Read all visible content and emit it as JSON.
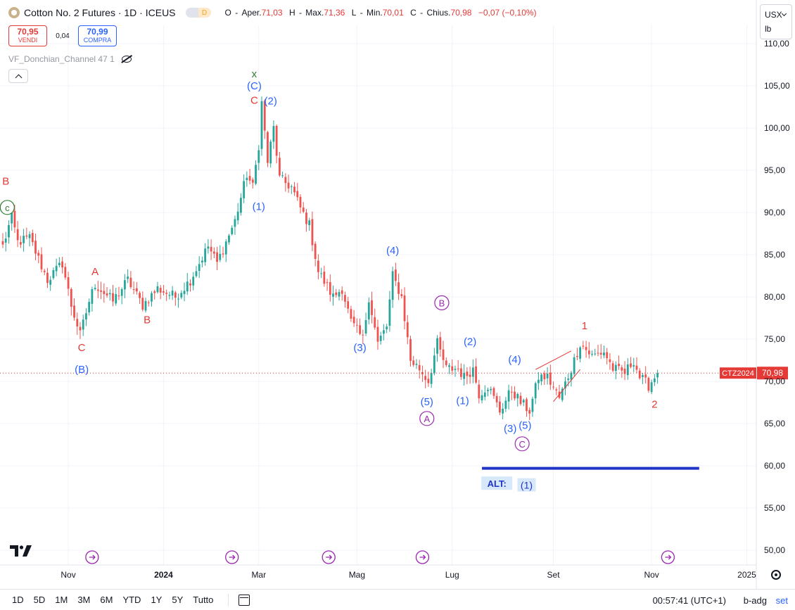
{
  "header": {
    "title": "Cotton No. 2 Futures · 1D · ICEUS",
    "pill_left": "",
    "pill_right": "D",
    "ohlc": [
      {
        "k": "O",
        "label": "Aper.",
        "v": "71,03"
      },
      {
        "k": "H",
        "label": "Max.",
        "v": "71,36"
      },
      {
        "k": "L",
        "label": "Min.",
        "v": "70,01"
      },
      {
        "k": "C",
        "label": "Chius.",
        "v": "70,98"
      }
    ],
    "change": "−0,07 (−0,10%)"
  },
  "trade": {
    "sell_price": "70,95",
    "sell_label": "VENDI",
    "spread": "0,04",
    "buy_price": "70,99",
    "buy_label": "COMPRA"
  },
  "indicator": {
    "name": "VF_Donchian_Channel 47 1"
  },
  "unit": {
    "currency": "USX",
    "unit": "lb"
  },
  "colors": {
    "up": "#26a69a",
    "down": "#ef5350",
    "blue": "#2962ff",
    "red": "#e53935",
    "purple": "#9c27b0",
    "green": "#2e7d32"
  },
  "bottombar": {
    "ranges": [
      "1D",
      "5D",
      "1M",
      "3M",
      "6M",
      "YTD",
      "1Y",
      "5Y",
      "Tutto"
    ],
    "clock": "00:57:41 (UTC+1)",
    "adj": "b-adg",
    "session": "set"
  },
  "chart_data": {
    "type": "candlestick",
    "symbol_tag": "CTZ2024",
    "last_price": "70,98",
    "ylim": [
      47,
      111
    ],
    "y_ticks": [
      "50,00",
      "55,00",
      "60,00",
      "65,00",
      "70,00",
      "75,00",
      "80,00",
      "85,00",
      "90,00",
      "95,00",
      "100,00",
      "105,00",
      "110,00"
    ],
    "y_tick_values": [
      50,
      55,
      60,
      65,
      70,
      75,
      80,
      85,
      90,
      95,
      100,
      105,
      110
    ],
    "x_ticks": [
      {
        "label": "Nov",
        "idx": 22
      },
      {
        "label": "2024",
        "idx": 54,
        "bold": true
      },
      {
        "label": "Mar",
        "idx": 86
      },
      {
        "label": "Mag",
        "idx": 119
      },
      {
        "label": "Lug",
        "idx": 151
      },
      {
        "label": "Set",
        "idx": 185
      },
      {
        "label": "Nov",
        "idx": 218
      },
      {
        "label": "2025",
        "idx": 250
      }
    ],
    "n_bars": 262,
    "anchors": [
      [
        0,
        86
      ],
      [
        3,
        89.5
      ],
      [
        5,
        86.5
      ],
      [
        9,
        87
      ],
      [
        15,
        82
      ],
      [
        20,
        84
      ],
      [
        23,
        79
      ],
      [
        26,
        75.5
      ],
      [
        29,
        79.5
      ],
      [
        31,
        81.5
      ],
      [
        37,
        79.5
      ],
      [
        42,
        82
      ],
      [
        47,
        79
      ],
      [
        52,
        81
      ],
      [
        58,
        80
      ],
      [
        63,
        82
      ],
      [
        69,
        86
      ],
      [
        72,
        84
      ],
      [
        78,
        89
      ],
      [
        82,
        94.5
      ],
      [
        84,
        93
      ],
      [
        86,
        98
      ],
      [
        87,
        103
      ],
      [
        89,
        96
      ],
      [
        91,
        100
      ],
      [
        93,
        94
      ],
      [
        97,
        93
      ],
      [
        100,
        90.5
      ],
      [
        103,
        88.5
      ],
      [
        106,
        83
      ],
      [
        111,
        80
      ],
      [
        114,
        81
      ],
      [
        117,
        77
      ],
      [
        121,
        75
      ],
      [
        123,
        80
      ],
      [
        126,
        74.5
      ],
      [
        129,
        76.5
      ],
      [
        131,
        82.5
      ],
      [
        134,
        80
      ],
      [
        137,
        72.5
      ],
      [
        140,
        71.5
      ],
      [
        143,
        70
      ],
      [
        146,
        74.5
      ],
      [
        149,
        71.5
      ],
      [
        153,
        71.5
      ],
      [
        155,
        70.5
      ],
      [
        158,
        71.5
      ],
      [
        160,
        68.5
      ],
      [
        163,
        69.5
      ],
      [
        167,
        66.5
      ],
      [
        171,
        69
      ],
      [
        174,
        67.5
      ],
      [
        177,
        66.5
      ],
      [
        180,
        70.5
      ],
      [
        183,
        70.5
      ],
      [
        187,
        68
      ],
      [
        191,
        71.5
      ],
      [
        194,
        74.5
      ],
      [
        198,
        73
      ],
      [
        202,
        73.5
      ],
      [
        205,
        71.5
      ],
      [
        209,
        71
      ],
      [
        212,
        72.5
      ],
      [
        214,
        70.5
      ],
      [
        217,
        69.5
      ],
      [
        220,
        71
      ]
    ],
    "annotations": [
      {
        "text": "x",
        "idx": 84.5,
        "price": 106.4,
        "color": "green"
      },
      {
        "text": "(C)",
        "idx": 84.5,
        "price": 105,
        "color": "blue"
      },
      {
        "text": "C",
        "idx": 84.5,
        "price": 103.3,
        "color": "red"
      },
      {
        "text": "(2)",
        "idx": 90,
        "price": 103.2,
        "color": "blue"
      },
      {
        "text": "(1)",
        "idx": 86,
        "price": 90.7,
        "color": "blue"
      },
      {
        "text": "B",
        "idx": 1,
        "price": 93.7,
        "color": "red"
      },
      {
        "text": "c",
        "idx": 1.5,
        "price": 90.6,
        "color": "green",
        "circle": true
      },
      {
        "text": "A",
        "idx": 31,
        "price": 83,
        "color": "red"
      },
      {
        "text": "B",
        "idx": 48.5,
        "price": 77.3,
        "color": "red"
      },
      {
        "text": "C",
        "idx": 26.5,
        "price": 74,
        "color": "red"
      },
      {
        "text": "(B)",
        "idx": 26.5,
        "price": 71.4,
        "color": "blue"
      },
      {
        "text": "(4)",
        "idx": 131,
        "price": 85.5,
        "color": "blue"
      },
      {
        "text": "B",
        "idx": 147.5,
        "price": 79.3,
        "color": "purple",
        "circle": true
      },
      {
        "text": "(3)",
        "idx": 120,
        "price": 74,
        "color": "blue"
      },
      {
        "text": "(2)",
        "idx": 157,
        "price": 74.7,
        "color": "blue"
      },
      {
        "text": "(1)",
        "idx": 154.5,
        "price": 67.7,
        "color": "blue"
      },
      {
        "text": "(5)",
        "idx": 142.5,
        "price": 67.6,
        "color": "blue"
      },
      {
        "text": "A",
        "idx": 142.5,
        "price": 65.6,
        "color": "purple",
        "circle": true
      },
      {
        "text": "(4)",
        "idx": 172,
        "price": 72.6,
        "color": "blue"
      },
      {
        "text": "(3)",
        "idx": 170.5,
        "price": 64.4,
        "color": "blue"
      },
      {
        "text": "(5)",
        "idx": 175.5,
        "price": 64.8,
        "color": "blue"
      },
      {
        "text": "C",
        "idx": 174.5,
        "price": 62.6,
        "color": "purple",
        "circle": true
      },
      {
        "text": "1",
        "idx": 195.5,
        "price": 76.6,
        "color": "red"
      },
      {
        "text": "2",
        "idx": 219,
        "price": 67.3,
        "color": "red"
      }
    ],
    "alt_line": {
      "idx_start": 161,
      "idx_end": 234,
      "price": 59.7
    },
    "alt_label": {
      "text": "ALT:",
      "idx": 166,
      "price": 57.9
    },
    "alt_wave": {
      "text": "(1)",
      "idx": 176,
      "price": 57.7
    },
    "wedge": {
      "top": [
        [
          179,
          71.4
        ],
        [
          191,
          73.6
        ]
      ],
      "bottom": [
        [
          185,
          67.6
        ],
        [
          194,
          71.4
        ]
      ]
    },
    "event_markers": [
      30,
      77,
      109.5,
      141,
      223.5
    ]
  }
}
